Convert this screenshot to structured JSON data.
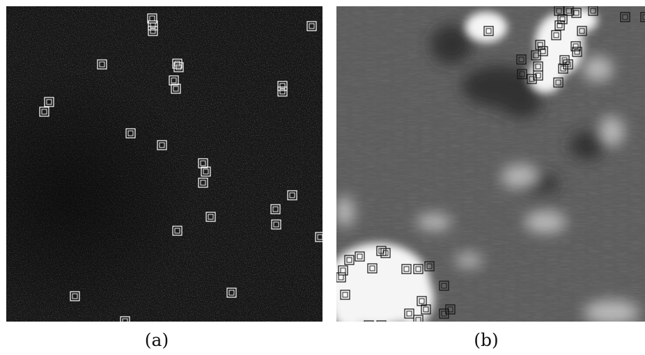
{
  "figure": {
    "panels": [
      {
        "id": "a",
        "caption": "(a)",
        "scene": "dark-textured-sea-surface",
        "box_color": "#ffffff"
      },
      {
        "id": "b",
        "caption": "(b)",
        "scene": "grey-sea-surface-with-clouds",
        "box_color": "#111111"
      }
    ]
  },
  "colors": {
    "panel_a_background": "#151515",
    "panel_b_background": "#5a5a5a",
    "cloud": "#f4f4f4",
    "shadow": "#2e2e2e"
  }
}
